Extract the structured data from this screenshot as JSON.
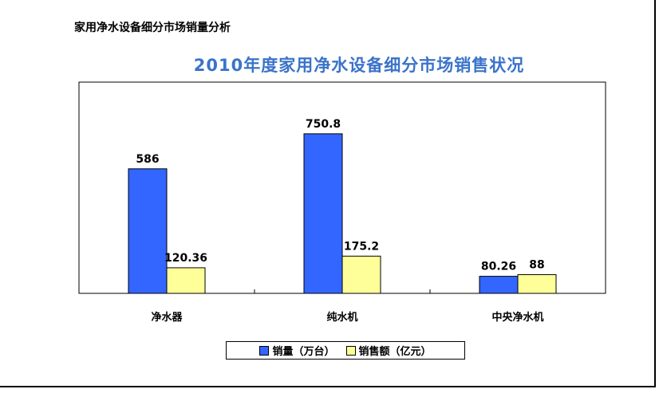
{
  "heading": "家用净水设备细分市场销量分析",
  "chart_data": {
    "type": "bar",
    "title": "2010年度家用净水设备细分市场销售状况",
    "categories": [
      "净水器",
      "纯水机",
      "中央净水机"
    ],
    "series": [
      {
        "name": "销量（万台）",
        "values": [
          586,
          750.8,
          80.26
        ],
        "labels": [
          "586",
          "750.8",
          "80.26"
        ],
        "color": "#3366ff"
      },
      {
        "name": "销售额（亿元）",
        "values": [
          120.36,
          175.2,
          88
        ],
        "labels": [
          "120.36",
          "175.2",
          "88"
        ],
        "color": "#ffff99"
      }
    ],
    "ylim": [
      0,
      900
    ],
    "grid": false,
    "legend_position": "bottom"
  }
}
